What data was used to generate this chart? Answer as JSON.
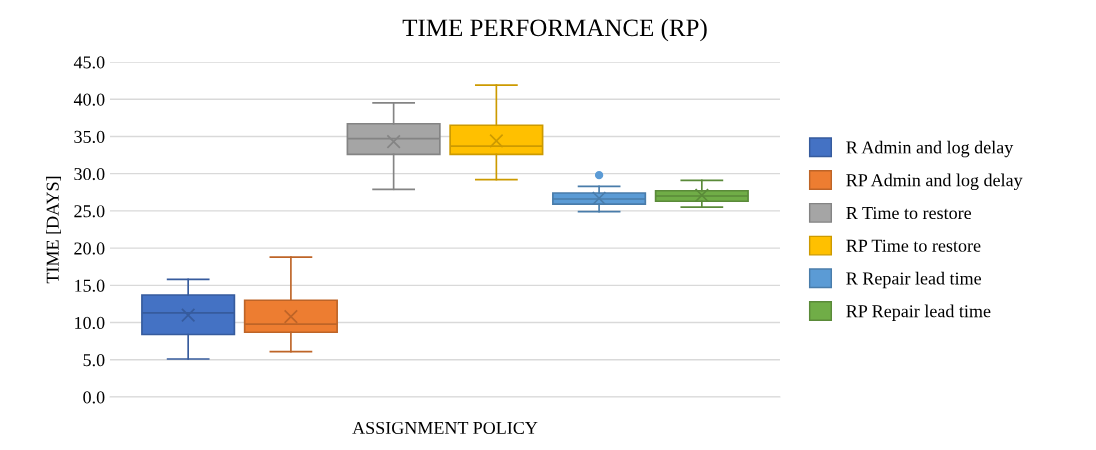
{
  "chart_data": {
    "type": "box",
    "title": "TIME PERFORMANCE (RP)",
    "xlabel": "ASSIGNMENT POLICY",
    "ylabel": "TIME [DAYS]",
    "categories": [
      null
    ],
    "ylim": [
      0,
      45
    ],
    "yticks": [
      {
        "value": 0,
        "label": "0.0"
      },
      {
        "value": 5,
        "label": "5.0"
      },
      {
        "value": 10,
        "label": "10.0"
      },
      {
        "value": 15,
        "label": "15.0"
      },
      {
        "value": 20,
        "label": "20.0"
      },
      {
        "value": 25,
        "label": "25.0"
      },
      {
        "value": 30,
        "label": "30.0"
      },
      {
        "value": 35,
        "label": "35.0"
      },
      {
        "value": 40,
        "label": "40.0"
      },
      {
        "value": 45,
        "label": "45.0"
      }
    ],
    "grid": "y",
    "legend": "right",
    "marker": "cross",
    "series": [
      {
        "name": "R Admin and log delay",
        "color": "#4472c4",
        "boxes": [
          {
            "low": 5.1,
            "q1": 8.4,
            "median": 11.3,
            "q3": 13.7,
            "high": 15.8,
            "mean": 11.0
          }
        ]
      },
      {
        "name": "RP Admin and log delay",
        "color": "#ed7d31",
        "boxes": [
          {
            "low": 6.1,
            "q1": 8.7,
            "median": 9.8,
            "q3": 13.0,
            "high": 18.8,
            "mean": 10.8
          }
        ]
      },
      {
        "name": "R Time to restore",
        "color": "#a5a5a5",
        "boxes": [
          {
            "low": 27.9,
            "q1": 32.6,
            "median": 34.7,
            "q3": 36.7,
            "high": 39.5,
            "mean": 34.3
          }
        ]
      },
      {
        "name": "RP Time to restore",
        "color": "#ffc000",
        "boxes": [
          {
            "low": 29.2,
            "q1": 32.6,
            "median": 33.7,
            "q3": 36.5,
            "high": 41.9,
            "mean": 34.4
          }
        ]
      },
      {
        "name": "R Repair lead time",
        "color": "#5b9bd5",
        "boxes": [
          {
            "low": 24.9,
            "q1": 25.9,
            "median": 26.6,
            "q3": 27.4,
            "high": 28.3,
            "mean": 26.7,
            "outliers": [
              29.8
            ]
          }
        ]
      },
      {
        "name": "RP Repair lead time",
        "color": "#70ad47",
        "boxes": [
          {
            "low": 25.5,
            "q1": 26.3,
            "median": 27.0,
            "q3": 27.7,
            "high": 29.1,
            "mean": 27.1
          }
        ]
      }
    ]
  }
}
